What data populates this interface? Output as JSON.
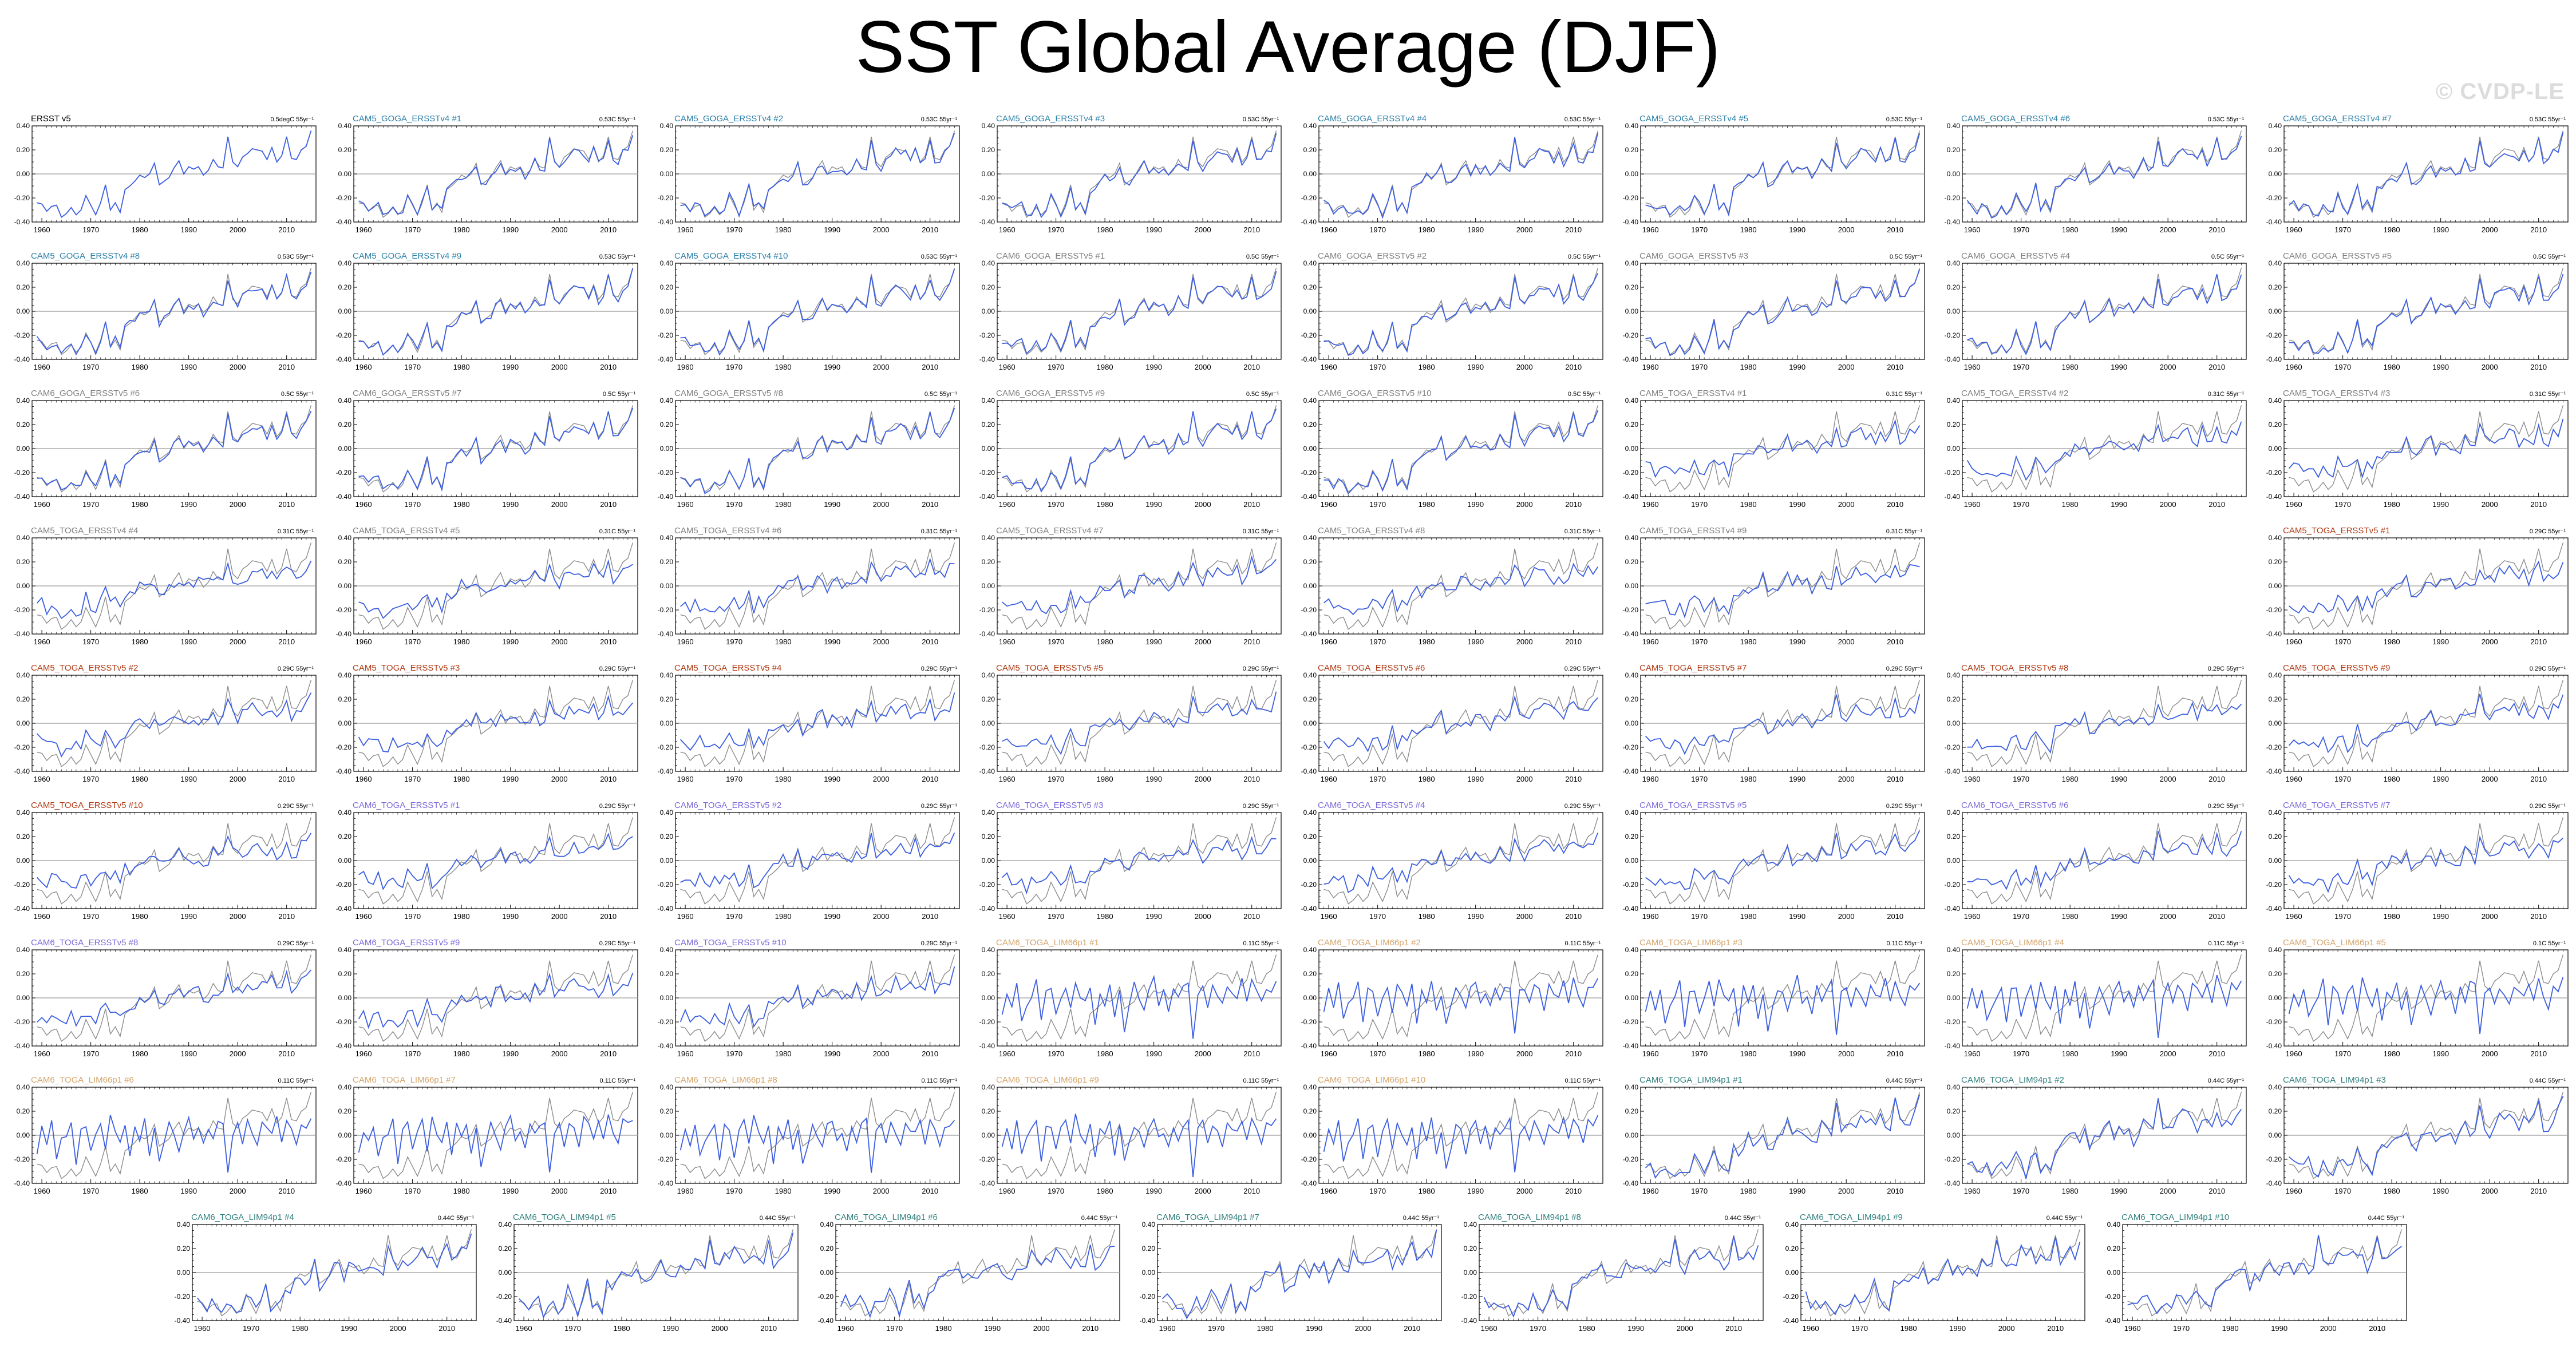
{
  "title": "SST Global Average (DJF)",
  "watermark": "© CVDP-LE",
  "colors": {
    "model": "#3c5ee0",
    "obs": "#8c8c8c",
    "ensemble": {
      "CAM5_GOGA_ERSSTv4": "#2b7fa8",
      "CAM6_GOGA_ERSSTv5": "#7f7f7f",
      "CAM5_TOGA_ERSSTv4": "#7f7f7f",
      "CAM5_TOGA_ERSSTv5": "#b03a14",
      "CAM6_TOGA_ERSSTv5": "#7a6ad8",
      "CAM6_TOGA_LIM66": "#d4a56c",
      "CAM6_TOGA_LIM94": "#2f7f7c",
      "ERSST": "#000000"
    }
  },
  "chart_data": {
    "type": "line",
    "layout": "small-multiples",
    "xlim": [
      1958,
      2016
    ],
    "ylim": [
      -0.4,
      0.4
    ],
    "xticks": [
      "1960",
      "1970",
      "1980",
      "1990",
      "2000",
      "2010"
    ],
    "yticks": [
      "0.40",
      "0.20",
      "0.00",
      "-0.20",
      "-0.40"
    ],
    "zero_line": true,
    "years": [
      1959,
      1960,
      1961,
      1962,
      1963,
      1964,
      1965,
      1966,
      1967,
      1968,
      1969,
      1970,
      1971,
      1972,
      1973,
      1974,
      1975,
      1976,
      1977,
      1978,
      1979,
      1980,
      1981,
      1982,
      1983,
      1984,
      1985,
      1986,
      1987,
      1988,
      1989,
      1990,
      1991,
      1992,
      1993,
      1994,
      1995,
      1996,
      1997,
      1998,
      1999,
      2000,
      2001,
      2002,
      2003,
      2004,
      2005,
      2006,
      2007,
      2008,
      2009,
      2010,
      2011,
      2012,
      2013,
      2014,
      2015
    ],
    "reference_series": [
      -0.24,
      -0.25,
      -0.31,
      -0.27,
      -0.26,
      -0.36,
      -0.33,
      -0.28,
      -0.34,
      -0.3,
      -0.18,
      -0.26,
      -0.34,
      -0.24,
      -0.09,
      -0.3,
      -0.24,
      -0.32,
      -0.13,
      -0.1,
      -0.06,
      -0.01,
      -0.03,
      0.0,
      0.09,
      -0.09,
      -0.06,
      -0.03,
      0.05,
      0.11,
      0.0,
      0.06,
      0.04,
      0.06,
      -0.01,
      0.03,
      0.12,
      0.06,
      0.05,
      0.31,
      0.1,
      0.06,
      0.14,
      0.17,
      0.21,
      0.2,
      0.19,
      0.12,
      0.22,
      0.1,
      0.15,
      0.31,
      0.13,
      0.12,
      0.2,
      0.23,
      0.36
    ],
    "lim_series": [
      -0.12,
      0.05,
      -0.08,
      0.1,
      -0.18,
      -0.05,
      0.02,
      0.12,
      -0.22,
      0.06,
      0.08,
      -0.15,
      0.03,
      0.11,
      -0.1,
      0.14,
      0.01,
      -0.06,
      0.09,
      -0.2,
      0.07,
      -0.03,
      0.12,
      -0.14,
      0.05,
      -0.25,
      -0.08,
      0.1,
      0.02,
      -0.12,
      0.06,
      0.15,
      -0.05,
      0.04,
      -0.1,
      0.08,
      -0.02,
      0.1,
      0.12,
      -0.32,
      0.03,
      0.09,
      -0.06,
      0.11,
      0.05,
      -0.08,
      0.12,
      0.06,
      0.0,
      0.14,
      -0.04,
      0.16,
      0.04,
      -0.06,
      0.1,
      0.07,
      0.15
    ],
    "panels": [
      {
        "label": "ERSST v5",
        "group": "ERSST",
        "trend": "0.5degC 55yr⁻¹",
        "style": "obs"
      },
      {
        "label": "CAM5_GOGA_ERSSTv4 #1",
        "group": "CAM5_GOGA_ERSSTv4",
        "trend": "0.53C 55yr⁻¹",
        "style": "goga"
      },
      {
        "label": "CAM5_GOGA_ERSSTv4 #2",
        "group": "CAM5_GOGA_ERSSTv4",
        "trend": "0.53C 55yr⁻¹",
        "style": "goga"
      },
      {
        "label": "CAM5_GOGA_ERSSTv4 #3",
        "group": "CAM5_GOGA_ERSSTv4",
        "trend": "0.53C 55yr⁻¹",
        "style": "goga"
      },
      {
        "label": "CAM5_GOGA_ERSSTv4 #4",
        "group": "CAM5_GOGA_ERSSTv4",
        "trend": "0.53C 55yr⁻¹",
        "style": "goga"
      },
      {
        "label": "CAM5_GOGA_ERSSTv4 #5",
        "group": "CAM5_GOGA_ERSSTv4",
        "trend": "0.53C 55yr⁻¹",
        "style": "goga"
      },
      {
        "label": "CAM5_GOGA_ERSSTv4 #6",
        "group": "CAM5_GOGA_ERSSTv4",
        "trend": "0.53C 55yr⁻¹",
        "style": "goga"
      },
      {
        "label": "CAM5_GOGA_ERSSTv4 #7",
        "group": "CAM5_GOGA_ERSSTv4",
        "trend": "0.53C 55yr⁻¹",
        "style": "goga"
      },
      {
        "label": "CAM5_GOGA_ERSSTv4 #8",
        "group": "CAM5_GOGA_ERSSTv4",
        "trend": "0.53C 55yr⁻¹",
        "style": "goga"
      },
      {
        "label": "CAM5_GOGA_ERSSTv4 #9",
        "group": "CAM5_GOGA_ERSSTv4",
        "trend": "0.53C 55yr⁻¹",
        "style": "goga"
      },
      {
        "label": "CAM5_GOGA_ERSSTv4 #10",
        "group": "CAM5_GOGA_ERSSTv4",
        "trend": "0.53C 55yr⁻¹",
        "style": "goga"
      },
      {
        "label": "CAM6_GOGA_ERSSTv5 #1",
        "group": "CAM6_GOGA_ERSSTv5",
        "trend": "0.5C 55yr⁻¹",
        "style": "goga"
      },
      {
        "label": "CAM6_GOGA_ERSSTv5 #2",
        "group": "CAM6_GOGA_ERSSTv5",
        "trend": "0.5C 55yr⁻¹",
        "style": "goga"
      },
      {
        "label": "CAM6_GOGA_ERSSTv5 #3",
        "group": "CAM6_GOGA_ERSSTv5",
        "trend": "0.5C 55yr⁻¹",
        "style": "goga"
      },
      {
        "label": "CAM6_GOGA_ERSSTv5 #4",
        "group": "CAM6_GOGA_ERSSTv5",
        "trend": "0.5C 55yr⁻¹",
        "style": "goga"
      },
      {
        "label": "CAM6_GOGA_ERSSTv5 #5",
        "group": "CAM6_GOGA_ERSSTv5",
        "trend": "0.5C 55yr⁻¹",
        "style": "goga"
      },
      {
        "label": "CAM6_GOGA_ERSSTv5 #6",
        "group": "CAM6_GOGA_ERSSTv5",
        "trend": "0.5C 55yr⁻¹",
        "style": "goga"
      },
      {
        "label": "CAM6_GOGA_ERSSTv5 #7",
        "group": "CAM6_GOGA_ERSSTv5",
        "trend": "0.5C 55yr⁻¹",
        "style": "goga"
      },
      {
        "label": "CAM6_GOGA_ERSSTv5 #8",
        "group": "CAM6_GOGA_ERSSTv5",
        "trend": "0.5C 55yr⁻¹",
        "style": "goga"
      },
      {
        "label": "CAM6_GOGA_ERSSTv5 #9",
        "group": "CAM6_GOGA_ERSSTv5",
        "trend": "0.5C 55yr⁻¹",
        "style": "goga"
      },
      {
        "label": "CAM6_GOGA_ERSSTv5 #10",
        "group": "CAM6_GOGA_ERSSTv5",
        "trend": "0.5C 55yr⁻¹",
        "style": "goga"
      },
      {
        "label": "CAM5_TOGA_ERSSTv4 #1",
        "group": "CAM5_TOGA_ERSSTv4",
        "trend": "0.31C 55yr⁻¹",
        "style": "toga"
      },
      {
        "label": "CAM5_TOGA_ERSSTv4 #2",
        "group": "CAM5_TOGA_ERSSTv4",
        "trend": "0.31C 55yr⁻¹",
        "style": "toga"
      },
      {
        "label": "CAM5_TOGA_ERSSTv4 #3",
        "group": "CAM5_TOGA_ERSSTv4",
        "trend": "0.31C 55yr⁻¹",
        "style": "toga"
      },
      {
        "label": "CAM5_TOGA_ERSSTv4 #4",
        "group": "CAM5_TOGA_ERSSTv4",
        "trend": "0.31C 55yr⁻¹",
        "style": "toga"
      },
      {
        "label": "CAM5_TOGA_ERSSTv4 #5",
        "group": "CAM5_TOGA_ERSSTv4",
        "trend": "0.31C 55yr⁻¹",
        "style": "toga"
      },
      {
        "label": "CAM5_TOGA_ERSSTv4 #6",
        "group": "CAM5_TOGA_ERSSTv4",
        "trend": "0.31C 55yr⁻¹",
        "style": "toga"
      },
      {
        "label": "CAM5_TOGA_ERSSTv4 #7",
        "group": "CAM5_TOGA_ERSSTv4",
        "trend": "0.31C 55yr⁻¹",
        "style": "toga"
      },
      {
        "label": "CAM5_TOGA_ERSSTv4 #8",
        "group": "CAM5_TOGA_ERSSTv4",
        "trend": "0.31C 55yr⁻¹",
        "style": "toga"
      },
      {
        "label": "CAM5_TOGA_ERSSTv4 #9",
        "group": "CAM5_TOGA_ERSSTv4",
        "trend": "0.31C 55yr⁻¹",
        "style": "toga"
      },
      {
        "label": "CAM5_TOGA_ERSSTv5 #1",
        "group": "CAM5_TOGA_ERSSTv5",
        "trend": "0.29C 55yr⁻¹",
        "style": "toga"
      },
      {
        "label": "CAM5_TOGA_ERSSTv5 #2",
        "group": "CAM5_TOGA_ERSSTv5",
        "trend": "0.29C 55yr⁻¹",
        "style": "toga"
      },
      {
        "label": "CAM5_TOGA_ERSSTv5 #3",
        "group": "CAM5_TOGA_ERSSTv5",
        "trend": "0.29C 55yr⁻¹",
        "style": "toga"
      },
      {
        "label": "CAM5_TOGA_ERSSTv5 #4",
        "group": "CAM5_TOGA_ERSSTv5",
        "trend": "0.29C 55yr⁻¹",
        "style": "toga"
      },
      {
        "label": "CAM5_TOGA_ERSSTv5 #5",
        "group": "CAM5_TOGA_ERSSTv5",
        "trend": "0.29C 55yr⁻¹",
        "style": "toga"
      },
      {
        "label": "CAM5_TOGA_ERSSTv5 #6",
        "group": "CAM5_TOGA_ERSSTv5",
        "trend": "0.29C 55yr⁻¹",
        "style": "toga"
      },
      {
        "label": "CAM5_TOGA_ERSSTv5 #7",
        "group": "CAM5_TOGA_ERSSTv5",
        "trend": "0.29C 55yr⁻¹",
        "style": "toga"
      },
      {
        "label": "CAM5_TOGA_ERSSTv5 #8",
        "group": "CAM5_TOGA_ERSSTv5",
        "trend": "0.29C 55yr⁻¹",
        "style": "toga"
      },
      {
        "label": "CAM5_TOGA_ERSSTv5 #9",
        "group": "CAM5_TOGA_ERSSTv5",
        "trend": "0.29C 55yr⁻¹",
        "style": "toga"
      },
      {
        "label": "CAM5_TOGA_ERSSTv5 #10",
        "group": "CAM5_TOGA_ERSSTv5",
        "trend": "0.29C 55yr⁻¹",
        "style": "toga"
      },
      {
        "label": "CAM6_TOGA_ERSSTv5 #1",
        "group": "CAM6_TOGA_ERSSTv5",
        "trend": "0.29C 55yr⁻¹",
        "style": "toga"
      },
      {
        "label": "CAM6_TOGA_ERSSTv5 #2",
        "group": "CAM6_TOGA_ERSSTv5",
        "trend": "0.29C 55yr⁻¹",
        "style": "toga"
      },
      {
        "label": "CAM6_TOGA_ERSSTv5 #3",
        "group": "CAM6_TOGA_ERSSTv5",
        "trend": "0.29C 55yr⁻¹",
        "style": "toga"
      },
      {
        "label": "CAM6_TOGA_ERSSTv5 #4",
        "group": "CAM6_TOGA_ERSSTv5",
        "trend": "0.29C 55yr⁻¹",
        "style": "toga"
      },
      {
        "label": "CAM6_TOGA_ERSSTv5 #5",
        "group": "CAM6_TOGA_ERSSTv5",
        "trend": "0.29C 55yr⁻¹",
        "style": "toga"
      },
      {
        "label": "CAM6_TOGA_ERSSTv5 #6",
        "group": "CAM6_TOGA_ERSSTv5",
        "trend": "0.29C 55yr⁻¹",
        "style": "toga"
      },
      {
        "label": "CAM6_TOGA_ERSSTv5 #7",
        "group": "CAM6_TOGA_ERSSTv5",
        "trend": "0.29C 55yr⁻¹",
        "style": "toga"
      },
      {
        "label": "CAM6_TOGA_ERSSTv5 #8",
        "group": "CAM6_TOGA_ERSSTv5",
        "trend": "0.29C 55yr⁻¹",
        "style": "toga"
      },
      {
        "label": "CAM6_TOGA_ERSSTv5 #9",
        "group": "CAM6_TOGA_ERSSTv5",
        "trend": "0.29C 55yr⁻¹",
        "style": "toga"
      },
      {
        "label": "CAM6_TOGA_ERSSTv5 #10",
        "group": "CAM6_TOGA_ERSSTv5",
        "trend": "0.29C 55yr⁻¹",
        "style": "toga"
      },
      {
        "label": "CAM6_TOGA_LIM66p1 #1",
        "group": "CAM6_TOGA_LIM66",
        "trend": "0.11C 55yr⁻¹",
        "style": "lim"
      },
      {
        "label": "CAM6_TOGA_LIM66p1 #2",
        "group": "CAM6_TOGA_LIM66",
        "trend": "0.11C 55yr⁻¹",
        "style": "lim"
      },
      {
        "label": "CAM6_TOGA_LIM66p1 #3",
        "group": "CAM6_TOGA_LIM66",
        "trend": "0.11C 55yr⁻¹",
        "style": "lim"
      },
      {
        "label": "CAM6_TOGA_LIM66p1 #4",
        "group": "CAM6_TOGA_LIM66",
        "trend": "0.11C 55yr⁻¹",
        "style": "lim"
      },
      {
        "label": "CAM6_TOGA_LIM66p1 #5",
        "group": "CAM6_TOGA_LIM66",
        "trend": "0.1C 55yr⁻¹",
        "style": "lim"
      },
      {
        "label": "CAM6_TOGA_LIM66p1 #6",
        "group": "CAM6_TOGA_LIM66",
        "trend": "0.11C 55yr⁻¹",
        "style": "lim"
      },
      {
        "label": "CAM6_TOGA_LIM66p1 #7",
        "group": "CAM6_TOGA_LIM66",
        "trend": "0.11C 55yr⁻¹",
        "style": "lim"
      },
      {
        "label": "CAM6_TOGA_LIM66p1 #8",
        "group": "CAM6_TOGA_LIM66",
        "trend": "0.11C 55yr⁻¹",
        "style": "lim"
      },
      {
        "label": "CAM6_TOGA_LIM66p1 #9",
        "group": "CAM6_TOGA_LIM66",
        "trend": "0.11C 55yr⁻¹",
        "style": "lim"
      },
      {
        "label": "CAM6_TOGA_LIM66p1 #10",
        "group": "CAM6_TOGA_LIM66",
        "trend": "0.11C 55yr⁻¹",
        "style": "lim"
      },
      {
        "label": "CAM6_TOGA_LIM94p1 #1",
        "group": "CAM6_TOGA_LIM94",
        "trend": "0.44C 55yr⁻¹",
        "style": "lim94"
      },
      {
        "label": "CAM6_TOGA_LIM94p1 #2",
        "group": "CAM6_TOGA_LIM94",
        "trend": "0.44C 55yr⁻¹",
        "style": "lim94"
      },
      {
        "label": "CAM6_TOGA_LIM94p1 #3",
        "group": "CAM6_TOGA_LIM94",
        "trend": "0.44C 55yr⁻¹",
        "style": "lim94"
      },
      {
        "label": "CAM6_TOGA_LIM94p1 #4",
        "group": "CAM6_TOGA_LIM94",
        "trend": "0.44C 55yr⁻¹",
        "style": "lim94"
      },
      {
        "label": "CAM6_TOGA_LIM94p1 #5",
        "group": "CAM6_TOGA_LIM94",
        "trend": "0.44C 55yr⁻¹",
        "style": "lim94"
      },
      {
        "label": "CAM6_TOGA_LIM94p1 #6",
        "group": "CAM6_TOGA_LIM94",
        "trend": "0.44C 55yr⁻¹",
        "style": "lim94"
      },
      {
        "label": "CAM6_TOGA_LIM94p1 #7",
        "group": "CAM6_TOGA_LIM94",
        "trend": "0.44C 55yr⁻¹",
        "style": "lim94"
      },
      {
        "label": "CAM6_TOGA_LIM94p1 #8",
        "group": "CAM6_TOGA_LIM94",
        "trend": "0.44C 55yr⁻¹",
        "style": "lim94"
      },
      {
        "label": "CAM6_TOGA_LIM94p1 #9",
        "group": "CAM6_TOGA_LIM94",
        "trend": "0.44C 55yr⁻¹",
        "style": "lim94"
      },
      {
        "label": "CAM6_TOGA_LIM94p1 #10",
        "group": "CAM6_TOGA_LIM94",
        "trend": "0.44C 55yr⁻¹",
        "style": "lim94"
      }
    ]
  }
}
